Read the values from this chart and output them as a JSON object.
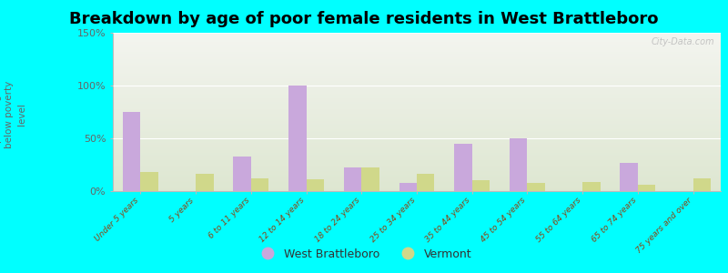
{
  "title": "Breakdown by age of poor female residents in West Brattleboro",
  "categories": [
    "Under 5 years",
    "5 years",
    "6 to 11 years",
    "12 to 14 years",
    "18 to 24 years",
    "25 to 34 years",
    "35 to 44 years",
    "45 to 54 years",
    "55 to 64 years",
    "65 to 74 years",
    "75 years and over"
  ],
  "west_brattleboro": [
    75,
    0,
    33,
    100,
    22,
    8,
    45,
    50,
    0,
    27,
    0
  ],
  "vermont": [
    18,
    16,
    12,
    11,
    22,
    16,
    10,
    8,
    9,
    6,
    12
  ],
  "wb_color": "#c9a8dc",
  "vt_color": "#d0d88a",
  "wb_label": "West Brattleboro",
  "vt_label": "Vermont",
  "ylabel": "percentage\nbelow poverty\nlevel",
  "ylim": [
    0,
    150
  ],
  "yticks": [
    0,
    50,
    100,
    150
  ],
  "ytick_labels": [
    "0%",
    "50%",
    "100%",
    "150%"
  ],
  "background_color": "#00ffff",
  "title_fontsize": 13,
  "watermark": "City-Data.com"
}
